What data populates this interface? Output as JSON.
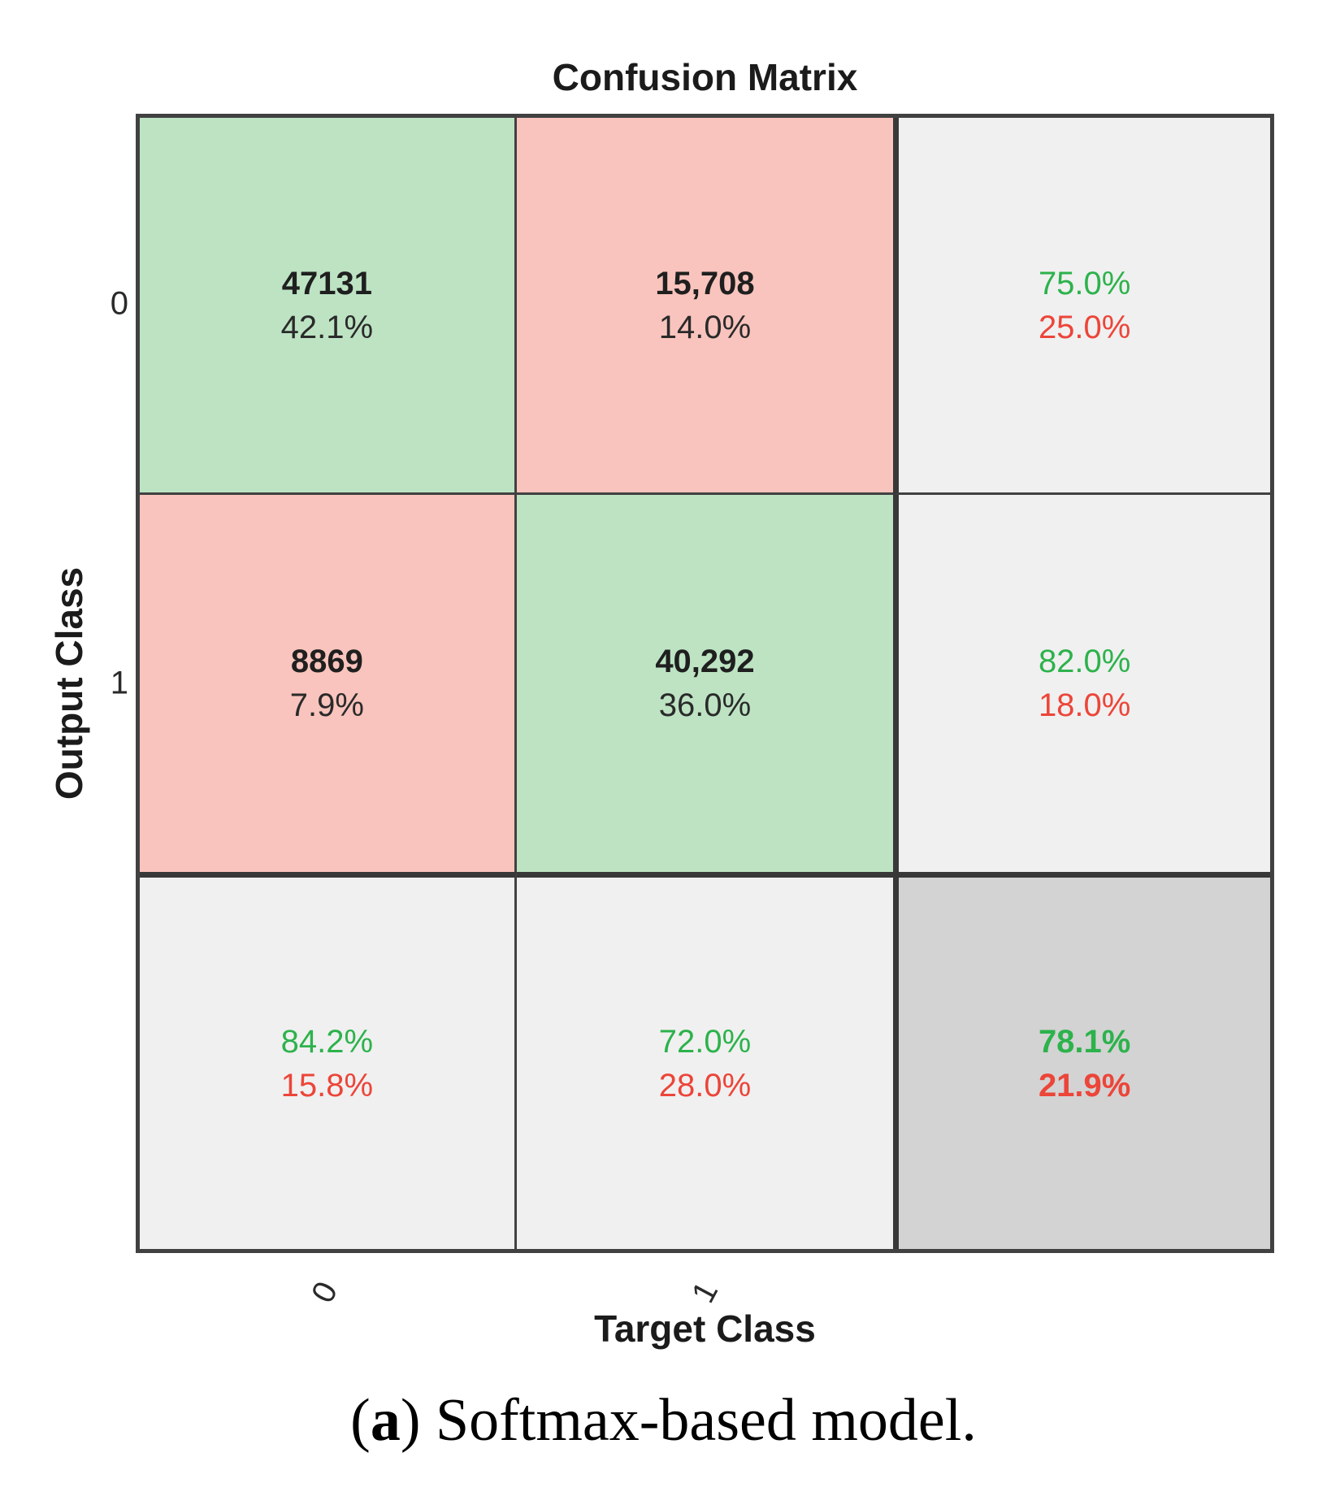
{
  "caption": {
    "open": "(",
    "label": "a",
    "rest": ") Softmax-based model."
  },
  "colors": {
    "correct_bg": "#BDE3C3",
    "incorrect_bg": "#F9C4BD",
    "summary_bg": "#F0F0F0",
    "overall_bg": "#D3D3D3",
    "good_text": "#2DB24C",
    "bad_text": "#EC4539",
    "grid_line": "#414141",
    "grid_line_heavy": "#383838"
  },
  "chart_data": {
    "type": "heatmap",
    "title": "Confusion Matrix",
    "xlabel": "Target Class",
    "ylabel": "Output Class",
    "x_tick_labels": [
      "0",
      "1"
    ],
    "y_tick_labels": [
      "0",
      "1"
    ],
    "classes": [
      "0",
      "1"
    ],
    "matrix_counts": [
      [
        47131,
        15708
      ],
      [
        8869,
        40292
      ]
    ],
    "matrix_percent_of_total": [
      [
        42.1,
        14.0
      ],
      [
        7.9,
        36.0
      ]
    ],
    "cells": [
      {
        "output_class": "0",
        "target_class": "0",
        "count": "47131",
        "percent": "42.1%",
        "kind": "correct"
      },
      {
        "output_class": "0",
        "target_class": "1",
        "count": "15,708",
        "percent": "14.0%",
        "kind": "incorrect"
      },
      {
        "output_class": "1",
        "target_class": "0",
        "count": "8869",
        "percent": "7.9%",
        "kind": "incorrect"
      },
      {
        "output_class": "1",
        "target_class": "1",
        "count": "40,292",
        "percent": "36.0%",
        "kind": "correct"
      }
    ],
    "row_summary": [
      {
        "positive": "75.0%",
        "negative": "25.0%"
      },
      {
        "positive": "82.0%",
        "negative": "18.0%"
      }
    ],
    "col_summary": [
      {
        "positive": "84.2%",
        "negative": "15.8%"
      },
      {
        "positive": "72.0%",
        "negative": "28.0%"
      }
    ],
    "overall": {
      "positive": "78.1%",
      "negative": "21.9%"
    },
    "legend_position": "none",
    "grid": "on"
  }
}
